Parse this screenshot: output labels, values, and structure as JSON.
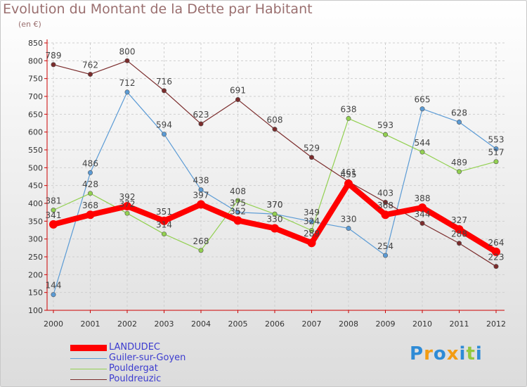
{
  "chart_data": {
    "type": "line",
    "title": "Evolution du Montant de la Dette par Habitant",
    "subtitle": "(en €)",
    "categories": [
      "2000",
      "2001",
      "2002",
      "2003",
      "2004",
      "2005",
      "2006",
      "2007",
      "2008",
      "2009",
      "2010",
      "2011",
      "2012"
    ],
    "y_ticks": [
      100,
      150,
      200,
      250,
      300,
      350,
      400,
      450,
      500,
      550,
      600,
      650,
      700,
      750,
      800,
      850
    ],
    "ylim": [
      100,
      850
    ],
    "grid": true,
    "legend_position": "bottom-left",
    "series": [
      {
        "name": "LANDUDEC",
        "color": "#ff0000",
        "values": [
          341,
          368,
          392,
          351,
          397,
          352,
          330,
          289,
          455,
          368,
          388,
          327,
          264
        ],
        "labels": [
          "341",
          "368",
          "392",
          "351",
          "397",
          "352",
          "330",
          "289",
          "455",
          "368",
          "388",
          "327",
          "264"
        ]
      },
      {
        "name": "Guiler-sur-Goyen",
        "color": "#5b9bd5",
        "values": [
          144,
          486,
          712,
          594,
          438,
          375,
          370,
          349,
          330,
          254,
          665,
          628,
          553
        ],
        "labels": [
          "144",
          "486",
          "712",
          "594",
          "438",
          "375",
          "370",
          "349",
          "330",
          "254",
          "665",
          "628",
          "553"
        ]
      },
      {
        "name": "Pouldergat",
        "color": "#92d050",
        "values": [
          381,
          428,
          372,
          314,
          268,
          408,
          370,
          324,
          638,
          593,
          544,
          489,
          517
        ],
        "labels": [
          "381",
          "428",
          "372",
          "314",
          "268",
          "408",
          "370",
          "324",
          "638",
          "593",
          "544",
          "489",
          "517"
        ]
      },
      {
        "name": "Pouldreuzic",
        "color": "#7b2c2c",
        "values": [
          789,
          762,
          800,
          716,
          623,
          691,
          608,
          529,
          461,
          403,
          344,
          288,
          223
        ],
        "labels": [
          "789",
          "762",
          "800",
          "716",
          "623",
          "691",
          "608",
          "529",
          "461",
          "403",
          "344",
          "288",
          "223"
        ]
      }
    ]
  },
  "logo": {
    "letters": [
      "P",
      "r",
      "o",
      "x",
      "i",
      "t",
      "i"
    ],
    "colors": [
      "#2e8bd6",
      "#f39c12",
      "#2e8bd6",
      "#f39c12",
      "#2e8bd6",
      "#92c83e",
      "#2e8bd6"
    ]
  }
}
